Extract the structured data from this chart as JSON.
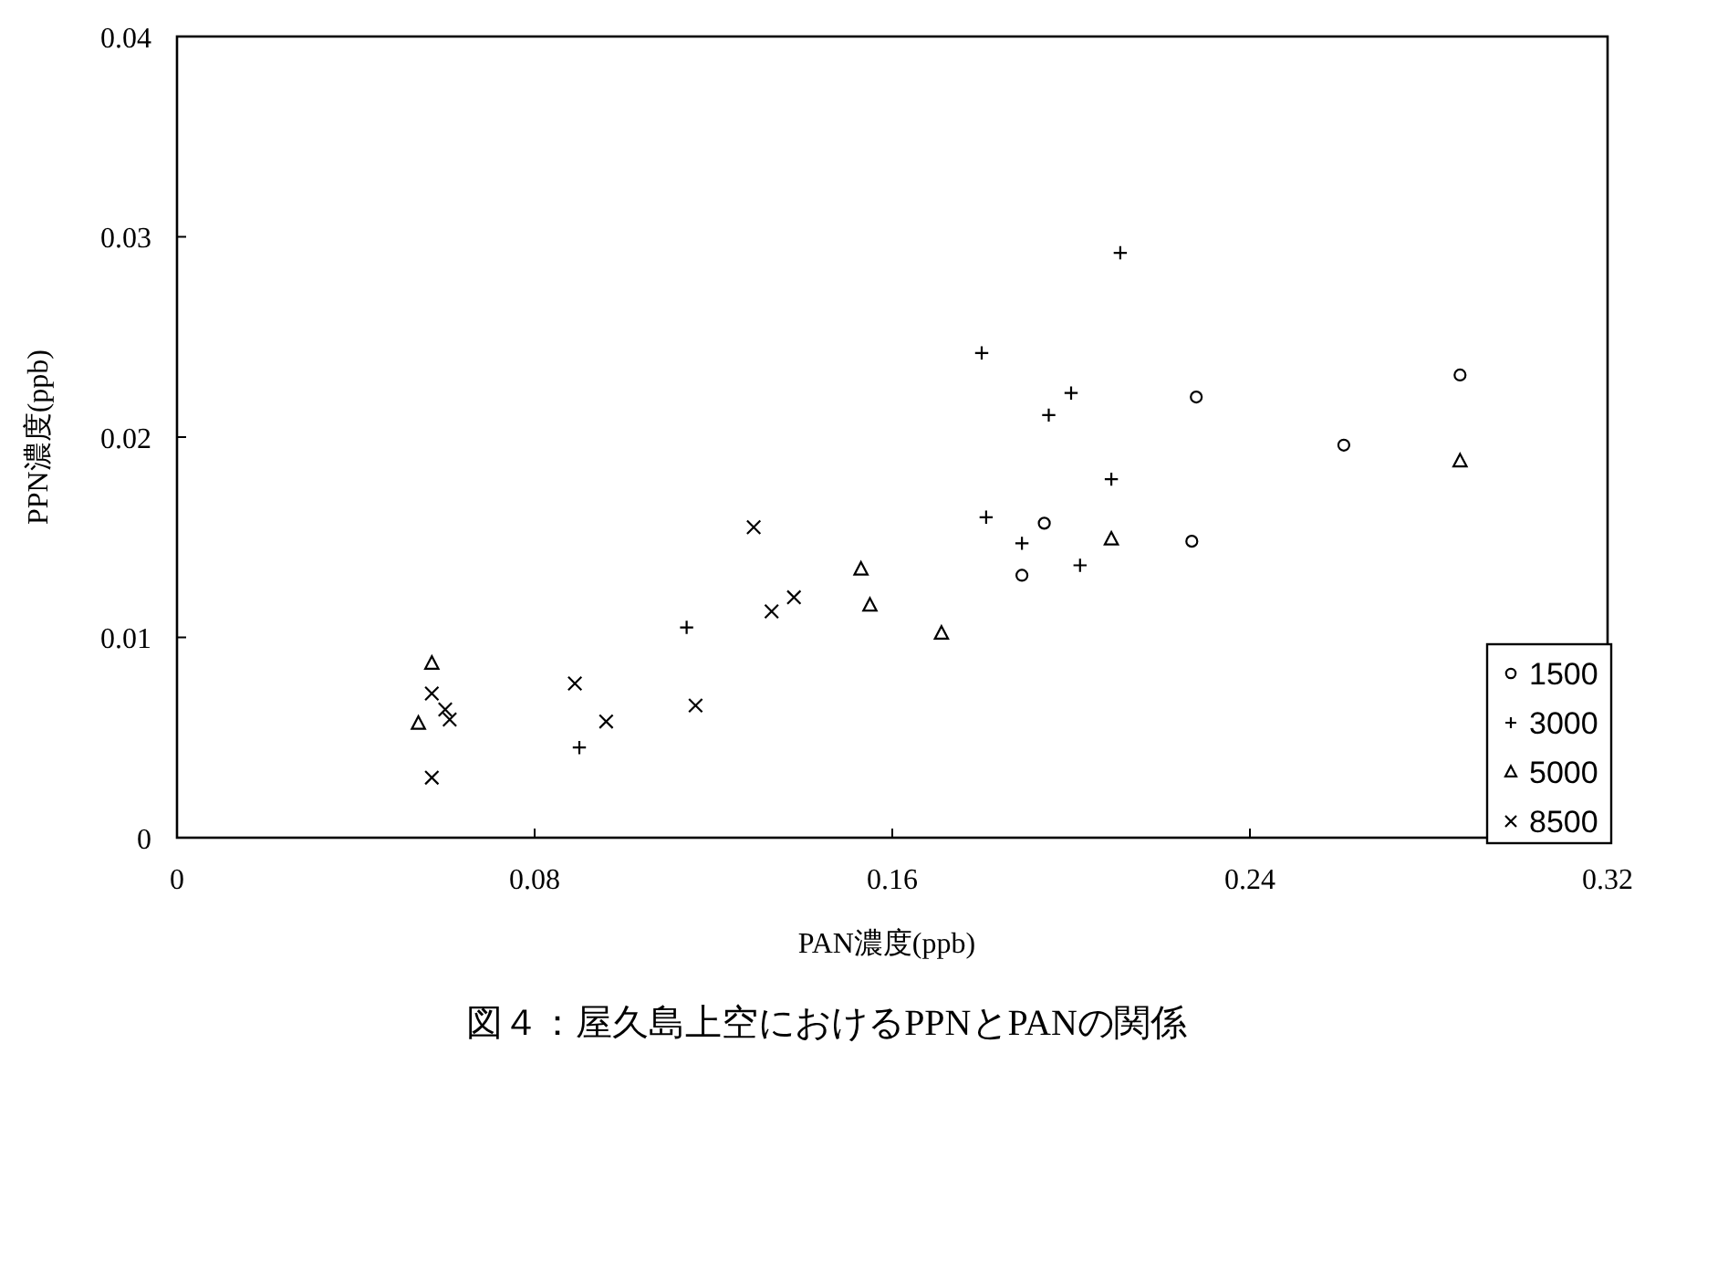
{
  "chart_data": {
    "type": "scatter",
    "title": "図４：屋久島上空におけるPPNとPANの関係",
    "xlabel": "PAN濃度(ppb)",
    "ylabel": "PPN濃度(ppb)",
    "xlim": [
      0,
      0.32
    ],
    "xticks": [
      0,
      0.08,
      0.16,
      0.24,
      0.32
    ],
    "ylim": [
      0,
      0.04
    ],
    "yticks": [
      0,
      0.01,
      0.02,
      0.03,
      0.04
    ],
    "legend": "bottom right",
    "series": [
      {
        "name": "1500",
        "color": "#000000",
        "marker": "circle",
        "x": [
          0.194,
          0.189,
          0.228,
          0.227,
          0.261,
          0.287
        ],
        "values": [
          0.0157,
          0.0131,
          0.022,
          0.0148,
          0.0196,
          0.0231
        ]
      },
      {
        "name": "3000",
        "color": "#000000",
        "marker": "plus",
        "x": [
          0.211,
          0.18,
          0.2,
          0.195,
          0.209,
          0.181,
          0.189,
          0.202,
          0.114,
          0.09
        ],
        "values": [
          0.0292,
          0.0242,
          0.0222,
          0.0211,
          0.0179,
          0.016,
          0.0147,
          0.0136,
          0.0105,
          0.0045
        ]
      },
      {
        "name": "5000",
        "color": "#000000",
        "marker": "triangle",
        "x": [
          0.209,
          0.287,
          0.153,
          0.155,
          0.171,
          0.057,
          0.054
        ],
        "values": [
          0.0149,
          0.0188,
          0.0134,
          0.0116,
          0.0102,
          0.0087,
          0.0057
        ]
      },
      {
        "name": "8500",
        "color": "#000000",
        "marker": "cross",
        "x": [
          0.129,
          0.138,
          0.133,
          0.116,
          0.089,
          0.096,
          0.057,
          0.06,
          0.061,
          0.057
        ],
        "values": [
          0.0155,
          0.012,
          0.0113,
          0.0066,
          0.0077,
          0.0058,
          0.0072,
          0.0064,
          0.0059,
          0.003
        ]
      }
    ]
  }
}
